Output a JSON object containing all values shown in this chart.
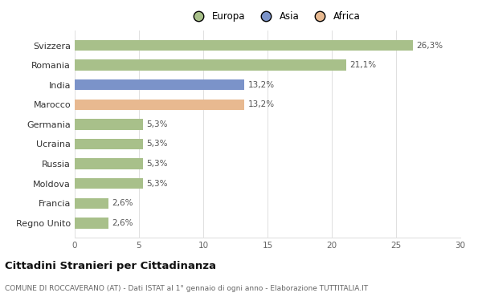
{
  "categories": [
    "Svizzera",
    "Romania",
    "India",
    "Marocco",
    "Germania",
    "Ucraina",
    "Russia",
    "Moldova",
    "Francia",
    "Regno Unito"
  ],
  "values": [
    26.3,
    21.1,
    13.2,
    13.2,
    5.3,
    5.3,
    5.3,
    5.3,
    2.6,
    2.6
  ],
  "labels": [
    "26,3%",
    "21,1%",
    "13,2%",
    "13,2%",
    "5,3%",
    "5,3%",
    "5,3%",
    "5,3%",
    "2,6%",
    "2,6%"
  ],
  "colors": [
    "#a8c08a",
    "#a8c08a",
    "#7b93c9",
    "#e8b990",
    "#a8c08a",
    "#a8c08a",
    "#a8c08a",
    "#a8c08a",
    "#a8c08a",
    "#a8c08a"
  ],
  "legend_labels": [
    "Europa",
    "Asia",
    "Africa"
  ],
  "legend_colors": [
    "#a8c08a",
    "#7b93c9",
    "#e8b990"
  ],
  "title": "Cittadini Stranieri per Cittadinanza",
  "subtitle": "COMUNE DI ROCCAVERANO (AT) - Dati ISTAT al 1° gennaio di ogni anno - Elaborazione TUTTITALIA.IT",
  "xlim": [
    0,
    30
  ],
  "xticks": [
    0,
    5,
    10,
    15,
    20,
    25,
    30
  ],
  "background_color": "#ffffff",
  "grid_color": "#e0e0e0",
  "bar_height": 0.55
}
